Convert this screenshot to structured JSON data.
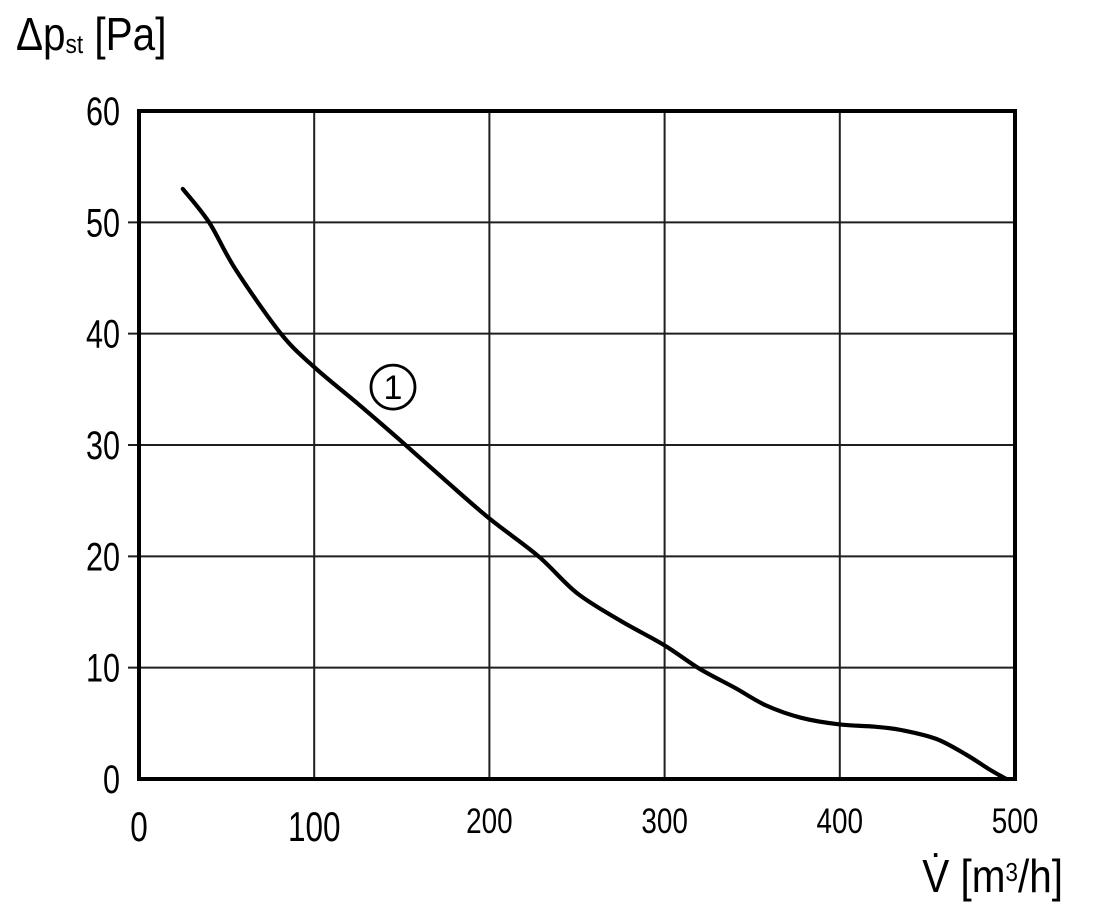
{
  "chart_data": {
    "type": "line",
    "title": "",
    "ylabel": {
      "prefix": "Δp",
      "sub": "st",
      "suffix": " [Pa]"
    },
    "xlabel": {
      "prefix": "V̇ [m",
      "sup": "3",
      "suffix": "/h]"
    },
    "xlim": [
      0,
      500
    ],
    "ylim": [
      0,
      60
    ],
    "x_ticks": [
      0,
      100,
      200,
      300,
      400,
      500
    ],
    "y_ticks": [
      0,
      10,
      20,
      30,
      40,
      50,
      60
    ],
    "grid": true,
    "legend": false,
    "colors": {
      "curve": "#000000",
      "grid": "#1f1f1f",
      "frame": "#000000",
      "text": "#000000",
      "background": "#ffffff"
    },
    "series": [
      {
        "name": "1",
        "marker": {
          "text": "1",
          "x": 145,
          "y": 35.2
        },
        "points": [
          [
            25,
            53
          ],
          [
            40,
            50
          ],
          [
            55,
            45.8
          ],
          [
            81,
            40
          ],
          [
            100,
            37
          ],
          [
            125,
            33.7
          ],
          [
            150,
            30.3
          ],
          [
            175,
            26.8
          ],
          [
            200,
            23.4
          ],
          [
            228,
            20
          ],
          [
            250,
            16.7
          ],
          [
            275,
            14.2
          ],
          [
            300,
            12
          ],
          [
            320,
            9.9
          ],
          [
            340,
            8.2
          ],
          [
            358,
            6.6
          ],
          [
            378,
            5.5
          ],
          [
            400,
            4.9
          ],
          [
            420,
            4.7
          ],
          [
            435,
            4.4
          ],
          [
            455,
            3.6
          ],
          [
            472,
            2.2
          ],
          [
            485,
            0.9
          ],
          [
            495,
            0
          ]
        ]
      }
    ]
  }
}
